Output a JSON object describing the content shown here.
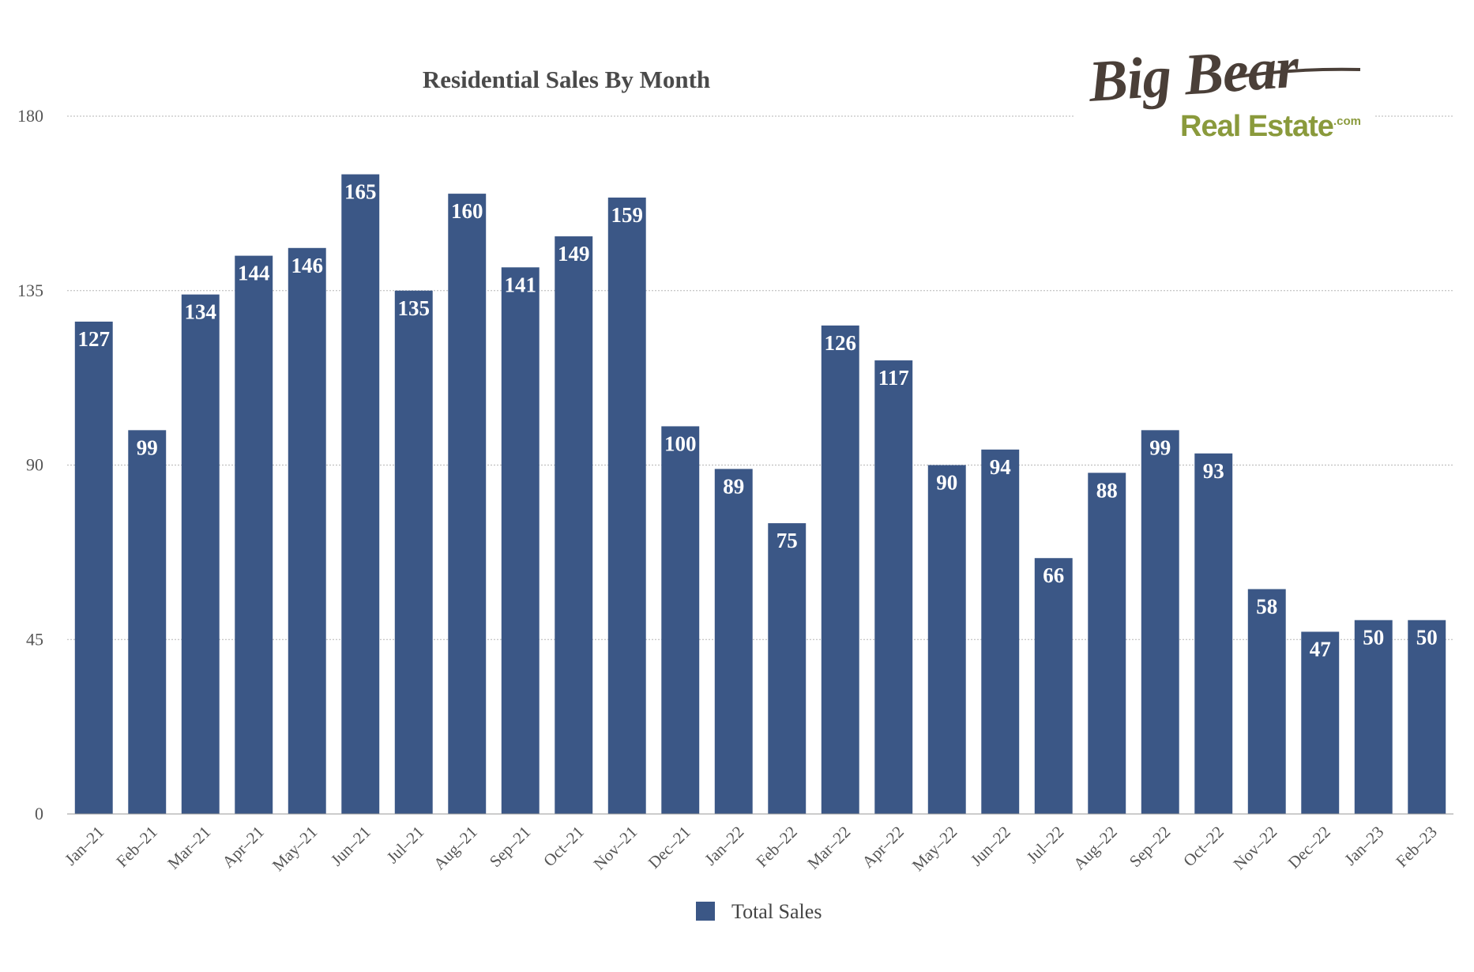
{
  "logo": {
    "line1": "Big Bear",
    "line2": "Real Estate",
    "suffix": ".com",
    "line1_color": "#4a3f38",
    "line2_color": "#8a9a3c"
  },
  "chart_data": {
    "type": "bar",
    "title": "Residential Sales By Month",
    "xlabel": "",
    "ylabel": "",
    "ylim": [
      0,
      180
    ],
    "yticks": [
      0,
      45,
      90,
      135,
      180
    ],
    "grid": true,
    "legend_position": "bottom",
    "bar_color": "#3b5786",
    "categories": [
      "Jan–21",
      "Feb–21",
      "Mar–21",
      "Apr–21",
      "May–21",
      "Jun–21",
      "Jul–21",
      "Aug–21",
      "Sep–21",
      "Oct–21",
      "Nov–21",
      "Dec–21",
      "Jan–22",
      "Feb–22",
      "Mar–22",
      "Apr–22",
      "May–22",
      "Jun–22",
      "Jul–22",
      "Aug–22",
      "Sep–22",
      "Oct–22",
      "Nov–22",
      "Dec–22",
      "Jan–23",
      "Feb–23"
    ],
    "series": [
      {
        "name": "Total Sales",
        "values": [
          127,
          99,
          134,
          144,
          146,
          165,
          135,
          160,
          141,
          149,
          159,
          100,
          89,
          75,
          126,
          117,
          90,
          94,
          66,
          88,
          99,
          93,
          58,
          47,
          50,
          50
        ]
      }
    ]
  }
}
